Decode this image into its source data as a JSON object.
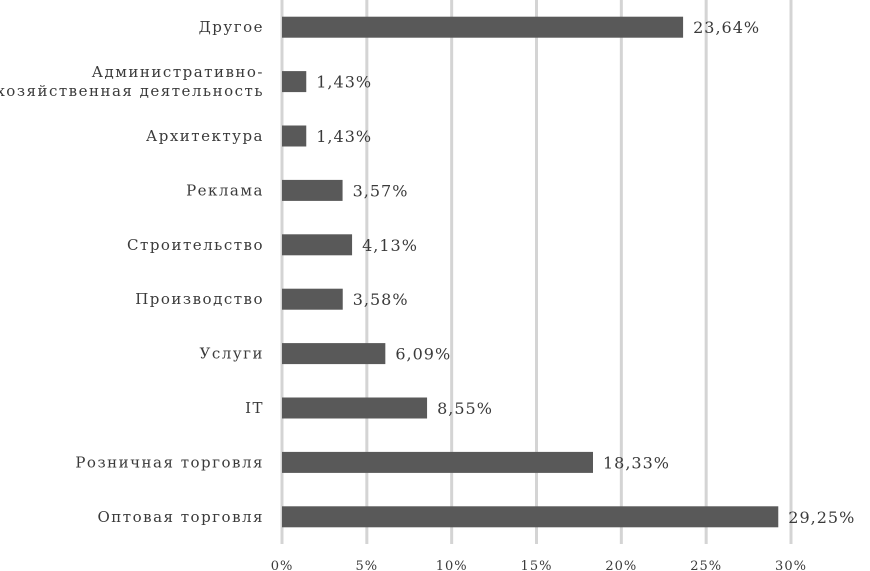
{
  "chart_data": {
    "type": "bar",
    "orientation": "horizontal",
    "categories": [
      "Другое",
      [
        "Административно-",
        "хозяйственная деятельность"
      ],
      "Архитектура",
      "Реклама",
      "Строительство",
      "Производство",
      "Услуги",
      "IT",
      "Розничная торговля",
      "Оптовая торговля"
    ],
    "values": [
      23.64,
      1.43,
      1.43,
      3.57,
      4.13,
      3.58,
      6.09,
      8.55,
      18.33,
      29.25
    ],
    "value_labels": [
      "23,64%",
      "1,43%",
      "1,43%",
      "3,57%",
      "4,13%",
      "3,58%",
      "6,09%",
      "8,55%",
      "18,33%",
      "29,25%"
    ],
    "xlim": [
      0,
      30
    ],
    "xticks": [
      0,
      5,
      10,
      15,
      20,
      25,
      30
    ],
    "xtick_labels": [
      "0%",
      "5%",
      "10%",
      "15%",
      "20%",
      "25%",
      "30%"
    ],
    "grid": true,
    "bar_color": "#595959",
    "grid_color": "#d4d4d4"
  }
}
